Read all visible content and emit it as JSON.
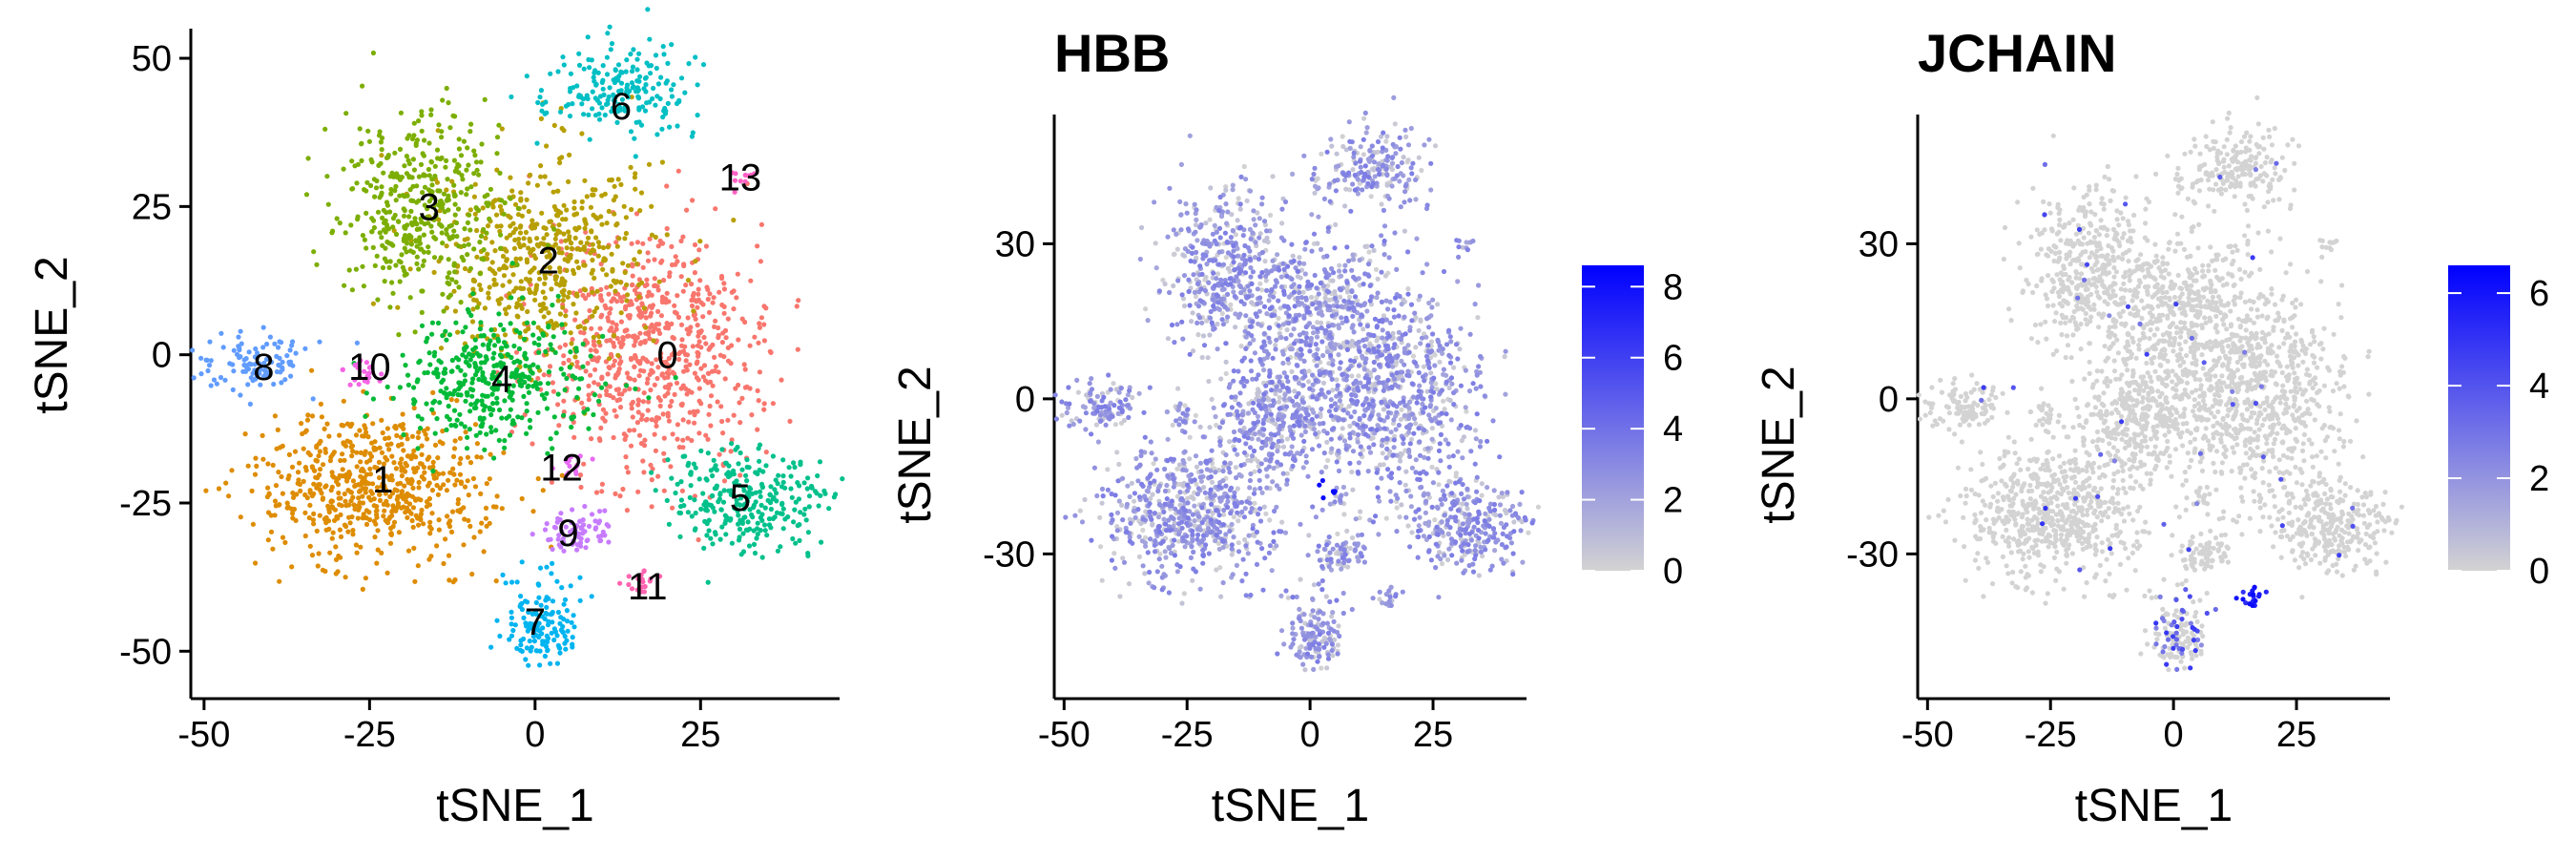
{
  "chart_data": [
    {
      "type": "scatter",
      "title": "",
      "xlabel": "tSNE_1",
      "ylabel": "tSNE_2",
      "xlim": [
        -52,
        46
      ],
      "ylim": [
        -58,
        55
      ],
      "xticks": [
        -50,
        -25,
        0,
        25
      ],
      "yticks": [
        -50,
        -25,
        0,
        25,
        50
      ],
      "xtick_labels": [
        "-50",
        "-25",
        "0",
        "25"
      ],
      "ytick_labels": [
        "-50",
        "-25",
        "0",
        "25",
        "50"
      ],
      "colored_by": "cluster",
      "clusters": [
        {
          "label": "0",
          "color": "#F8766D",
          "center": [
            18,
            0
          ],
          "sd": [
            8.5,
            10
          ],
          "n": 700
        },
        {
          "label": "1",
          "color": "#DE8C00",
          "center": [
            -24,
            -22
          ],
          "sd": [
            9,
            6.5
          ],
          "n": 620
        },
        {
          "label": "2",
          "color": "#B79F00",
          "center": [
            2,
            17
          ],
          "sd": [
            8,
            9
          ],
          "n": 520
        },
        {
          "label": "3",
          "color": "#7CAE00",
          "center": [
            -17,
            25
          ],
          "sd": [
            6,
            8
          ],
          "n": 420
        },
        {
          "label": "4",
          "color": "#00BA38",
          "center": [
            -6,
            -4
          ],
          "sd": [
            7,
            5.5
          ],
          "n": 380
        },
        {
          "label": "5",
          "color": "#00C08B",
          "center": [
            32,
            -24
          ],
          "sd": [
            6,
            4.5
          ],
          "n": 280
        },
        {
          "label": "6",
          "color": "#00BFC4",
          "center": [
            13,
            45
          ],
          "sd": [
            6,
            4
          ],
          "n": 200
        },
        {
          "label": "7",
          "color": "#00B4F0",
          "center": [
            1,
            -45
          ],
          "sd": [
            3.2,
            4
          ],
          "n": 140
        },
        {
          "label": "8",
          "color": "#619CFF",
          "center": [
            -42,
            -2
          ],
          "sd": [
            4.5,
            2.5
          ],
          "n": 110
        },
        {
          "label": "9",
          "color": "#C77CFF",
          "center": [
            6,
            -30
          ],
          "sd": [
            3,
            2
          ],
          "n": 70
        },
        {
          "label": "10",
          "color": "#F564E3",
          "center": [
            -26,
            -3
          ],
          "sd": [
            1.5,
            1.2
          ],
          "n": 25
        },
        {
          "label": "11",
          "color": "#FF64B0",
          "center": [
            16,
            -38
          ],
          "sd": [
            1.2,
            1.2
          ],
          "n": 18
        },
        {
          "label": "12",
          "color": "#E76BF3",
          "center": [
            6,
            -19
          ],
          "sd": [
            1.2,
            1
          ],
          "n": 14
        },
        {
          "label": "13",
          "color": "#FF61C3",
          "center": [
            31,
            30
          ],
          "sd": [
            1,
            1.2
          ],
          "n": 10
        }
      ],
      "cluster_label_positions": [
        {
          "label": "0",
          "x": 20,
          "y": 0
        },
        {
          "label": "1",
          "x": -23,
          "y": -21
        },
        {
          "label": "2",
          "x": 2,
          "y": 16
        },
        {
          "label": "3",
          "x": -16,
          "y": 25
        },
        {
          "label": "4",
          "x": -5,
          "y": -4
        },
        {
          "label": "5",
          "x": 31,
          "y": -24
        },
        {
          "label": "6",
          "x": 13,
          "y": 42
        },
        {
          "label": "7",
          "x": 0,
          "y": -45
        },
        {
          "label": "8",
          "x": -41,
          "y": -2
        },
        {
          "label": "9",
          "x": 5,
          "y": -30
        },
        {
          "label": "10",
          "x": -25,
          "y": -2
        },
        {
          "label": "11",
          "x": 17,
          "y": -39
        },
        {
          "label": "12",
          "x": 4,
          "y": -19
        },
        {
          "label": "13",
          "x": 31,
          "y": 30
        }
      ]
    },
    {
      "type": "scatter",
      "title": "HBB",
      "xlabel": "tSNE_1",
      "ylabel": "tSNE_2",
      "xlim": [
        -52,
        44
      ],
      "ylim": [
        -58,
        55
      ],
      "xticks": [
        -50,
        -25,
        0,
        25
      ],
      "yticks": [
        -30,
        0,
        30
      ],
      "xtick_labels": [
        "-50",
        "-25",
        "0",
        "25"
      ],
      "ytick_labels": [
        "-30",
        "0",
        "30"
      ],
      "colored_by": "expression",
      "gradient": {
        "low": "#D3D3D3",
        "high": "#0000FF"
      },
      "colorbar": {
        "min": 0,
        "max": 8.6,
        "ticks": [
          0,
          2,
          4,
          6,
          8
        ],
        "tick_labels": [
          "0",
          "2",
          "4",
          "6",
          "8"
        ]
      },
      "expression_summary": "most cells express HBB at low-moderate levels (~2-3); small high-expression group near (3, -18)"
    },
    {
      "type": "scatter",
      "title": "JCHAIN",
      "xlabel": "tSNE_1",
      "ylabel": "tSNE_2",
      "xlim": [
        -52,
        44
      ],
      "ylim": [
        -58,
        55
      ],
      "xticks": [
        -50,
        -25,
        0,
        25
      ],
      "yticks": [
        -30,
        0,
        30
      ],
      "xtick_labels": [
        "-50",
        "-25",
        "0",
        "25"
      ],
      "ytick_labels": [
        "-30",
        "0",
        "30"
      ],
      "colored_by": "expression",
      "gradient": {
        "low": "#D3D3D3",
        "high": "#0000FF"
      },
      "colorbar": {
        "min": 0,
        "max": 6.6,
        "ticks": [
          0,
          2,
          4,
          6
        ],
        "tick_labels": [
          "0",
          "2",
          "4",
          "6"
        ]
      },
      "expression_summary": "near-zero everywhere except cluster 11 and scattered cells in cluster 7"
    }
  ]
}
